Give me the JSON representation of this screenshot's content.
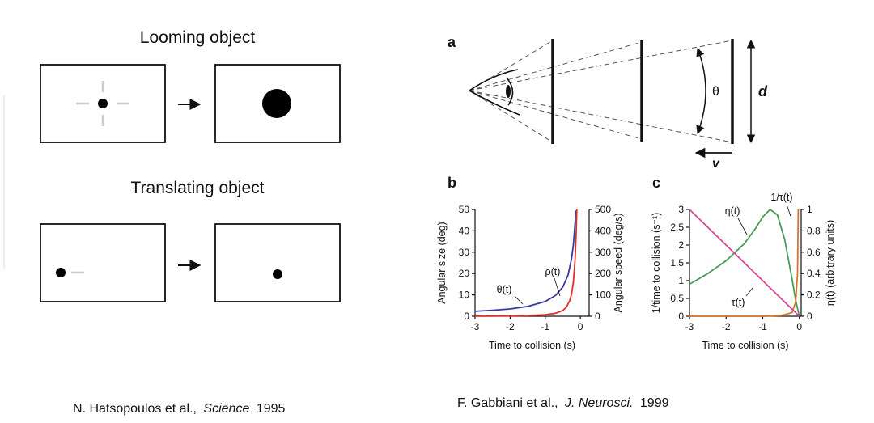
{
  "left_panel": {
    "looming": {
      "title": "Looming object"
    },
    "translating": {
      "title": "Translating object"
    },
    "citation": {
      "authors": "N. Hatsopoulos et al.,",
      "journal": "Science",
      "year": "1995"
    }
  },
  "right_panel": {
    "panel_a": {
      "label": "a",
      "angle": "θ",
      "distance": "d",
      "velocity": "v"
    },
    "panel_b": {
      "type": "line",
      "label": "b",
      "xlabel": "Time to collision (s)",
      "ylabel": "Angular size (deg)",
      "y2label": "Angular speed (deg/s)",
      "xlim": [
        -3,
        0.25
      ],
      "ylim": [
        0,
        50
      ],
      "y2lim": [
        0,
        500
      ],
      "xticks": [
        -3,
        -2,
        -1,
        0
      ],
      "yticks": [
        0,
        10,
        20,
        30,
        40,
        50
      ],
      "y2ticks": [
        0,
        100,
        200,
        300,
        400,
        500
      ],
      "series": [
        {
          "name": "θ(t)",
          "color": "#3a3a9c",
          "axis": "y",
          "x": [
            -3,
            -2.5,
            -2,
            -1.5,
            -1,
            -0.7,
            -0.5,
            -0.35,
            -0.25,
            -0.2,
            -0.15,
            -0.13
          ],
          "values": [
            2.3,
            2.8,
            3.4,
            4.6,
            6.9,
            9.8,
            13.7,
            19.4,
            27,
            33.4,
            43.6,
            49.5
          ]
        },
        {
          "name": "ρ(t)",
          "color": "#e0302a",
          "axis": "y2",
          "x": [
            -3,
            -2,
            -1.5,
            -1,
            -0.7,
            -0.5,
            -0.4,
            -0.3,
            -0.25,
            -0.2,
            -0.15,
            -0.12,
            -0.1
          ],
          "values": [
            0.8,
            1.7,
            3.1,
            6.9,
            13.9,
            27,
            42,
            74,
            104,
            159,
            264,
            382,
            500
          ]
        }
      ]
    },
    "panel_c": {
      "type": "line",
      "label": "c",
      "xlabel": "Time to collision (s)",
      "ylabel": "1/time to collision (s⁻¹)",
      "y2label": "η(t) (arbitrary units)",
      "xlim": [
        -3,
        0.05
      ],
      "ylim": [
        0,
        3
      ],
      "y2lim": [
        0,
        1
      ],
      "xticks": [
        -3,
        -2,
        -1,
        0
      ],
      "yticks": [
        0,
        0.5,
        1,
        1.5,
        2,
        2.5,
        3
      ],
      "y2ticks": [
        0,
        0.2,
        0.4,
        0.6,
        0.8,
        1
      ],
      "series": [
        {
          "name": "η(t)",
          "color": "#4a9a5a",
          "axis": "y2",
          "x": [
            -3,
            -2.5,
            -2,
            -1.5,
            -1.2,
            -1,
            -0.8,
            -0.6,
            -0.4,
            -0.2,
            -0.1,
            0
          ],
          "values": [
            0.3,
            0.4,
            0.52,
            0.68,
            0.82,
            0.93,
            1,
            0.95,
            0.72,
            0.35,
            0.15,
            0
          ]
        },
        {
          "name": "1/τ(t)",
          "color": "#d9752a",
          "axis": "y",
          "x": [
            -3,
            -1,
            -0.5,
            -0.2,
            -0.1,
            -0.05,
            -0.03
          ],
          "values": [
            0,
            0,
            0.02,
            0.1,
            0.4,
            1.2,
            3
          ]
        },
        {
          "name": "τ(t)",
          "color": "#d9479a",
          "axis": "y",
          "x": [
            -3,
            0
          ],
          "values": [
            3,
            0
          ]
        }
      ]
    },
    "citation": {
      "authors": "F. Gabbiani et al.,",
      "journal": "J. Neurosci.",
      "year": "1999"
    }
  }
}
